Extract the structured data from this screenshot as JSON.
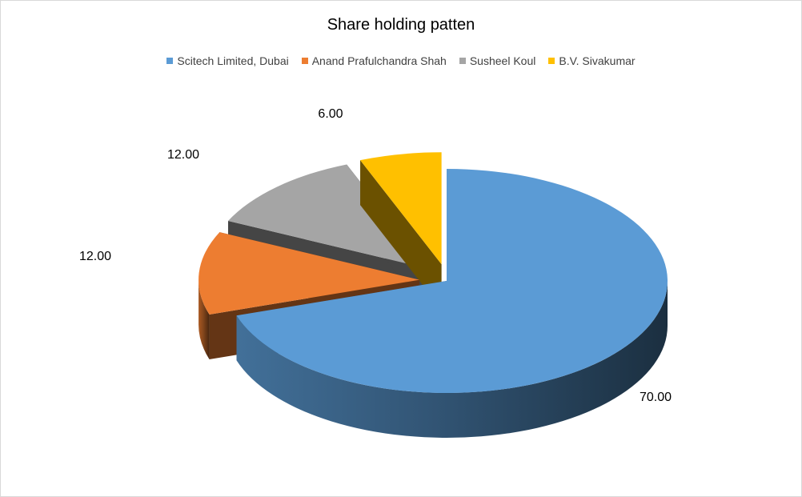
{
  "chart_data": {
    "type": "pie",
    "style": "3d-exploded",
    "title": "Share holding patten",
    "categories": [
      "Scitech Limited, Dubai",
      "Anand Prafulchandra Shah",
      "Susheel Koul",
      "B.V. Sivakumar"
    ],
    "values": [
      70.0,
      12.0,
      12.0,
      6.0
    ],
    "value_labels": [
      "70.00",
      "12.00",
      "12.00",
      "6.00"
    ],
    "colors": [
      "#5b9bd5",
      "#ed7d31",
      "#a5a5a5",
      "#ffc000"
    ],
    "legend_position": "top"
  }
}
